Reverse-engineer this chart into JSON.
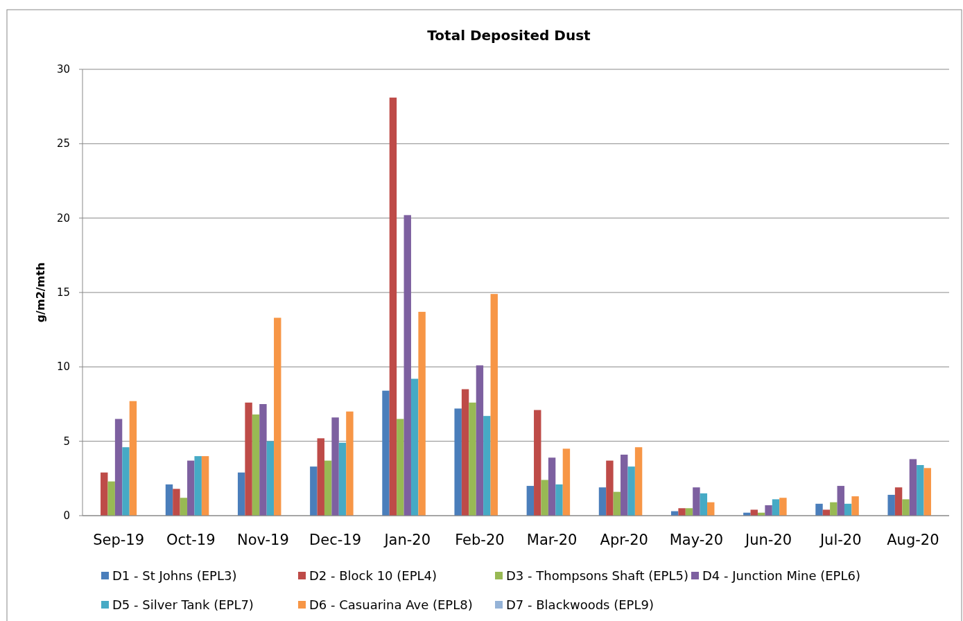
{
  "chart_data": {
    "type": "bar",
    "title": "Total Deposited Dust",
    "ylabel": "g/m2/mth",
    "categories": [
      "Sep-19",
      "Oct-19",
      "Nov-19",
      "Dec-19",
      "Jan-20",
      "Feb-20",
      "Mar-20",
      "Apr-20",
      "May-20",
      "Jun-20",
      "Jul-20",
      "Aug-20"
    ],
    "series": [
      {
        "name": "D1 - St Johns (EPL3)",
        "color": "#4a7ebb",
        "values": [
          null,
          2.1,
          2.9,
          3.3,
          8.4,
          7.2,
          2.0,
          1.9,
          0.3,
          0.2,
          0.8,
          1.4
        ]
      },
      {
        "name": "D2 - Block 10 (EPL4)",
        "color": "#be4b48",
        "values": [
          2.9,
          1.8,
          7.6,
          5.2,
          28.1,
          8.5,
          7.1,
          3.7,
          0.5,
          0.4,
          0.4,
          1.9
        ]
      },
      {
        "name": "D3 - Thompsons Shaft (EPL5)",
        "color": "#98b954",
        "values": [
          2.3,
          1.2,
          6.8,
          3.7,
          6.5,
          7.6,
          2.4,
          1.6,
          0.5,
          0.2,
          0.9,
          1.1
        ]
      },
      {
        "name": "D4 - Junction Mine (EPL6)",
        "color": "#7d60a0",
        "values": [
          6.5,
          3.7,
          7.5,
          6.6,
          20.2,
          10.1,
          3.9,
          4.1,
          1.9,
          0.7,
          2.0,
          3.8
        ]
      },
      {
        "name": "D5 - Silver Tank (EPL7)",
        "color": "#46aac5",
        "values": [
          4.6,
          4.0,
          5.0,
          4.9,
          9.2,
          6.7,
          2.1,
          3.3,
          1.5,
          1.1,
          0.8,
          3.4
        ]
      },
      {
        "name": "D6 - Casuarina Ave (EPL8)",
        "color": "#f79646",
        "values": [
          7.7,
          4.0,
          13.3,
          7.0,
          13.7,
          14.9,
          4.5,
          4.6,
          0.9,
          1.2,
          1.3,
          3.2
        ]
      },
      {
        "name": "D7 - Blackwoods (EPL9)",
        "color": "#95b3d7",
        "values": [
          null,
          null,
          null,
          null,
          null,
          null,
          null,
          null,
          null,
          null,
          null,
          null
        ]
      }
    ],
    "ylim": [
      0,
      30
    ],
    "yticks": [
      0,
      5,
      10,
      15,
      20,
      25,
      30
    ],
    "grid": "y",
    "legend": "bottom"
  }
}
